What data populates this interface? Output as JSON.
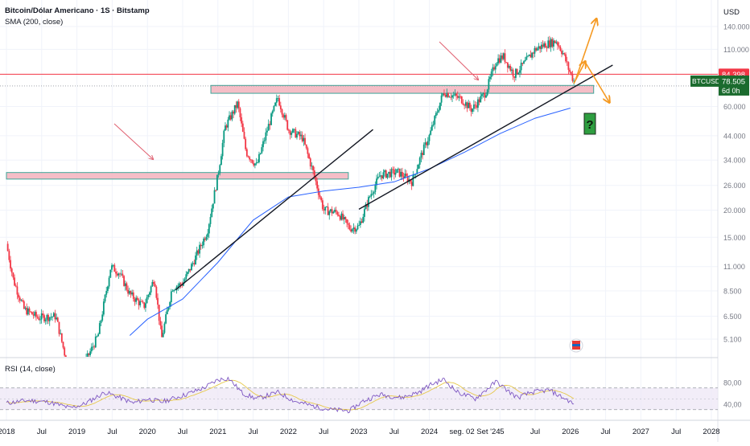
{
  "header": {
    "title": "Bitcoin/Dólar Americano · 1S · Bitstamp",
    "indicator": "SMA (200, close)"
  },
  "rsi_label": "RSI (14, close)",
  "currency_button": "USD",
  "price_tags": {
    "level_value": "84.398",
    "symbol": "BTCUSD",
    "last_value": "78.505",
    "countdown": "6d 0h"
  },
  "crosshair_date": "seg. 02 Set '24",
  "question_mark": "?",
  "colors": {
    "up": "#089981",
    "down": "#f23645",
    "sma": "#2962ff",
    "zone_fill": "#f4b8c2",
    "zone_border": "#2a9d8f",
    "rsi_line": "#7e57c2",
    "rsi_ma": "#e6c84a",
    "arrow_orange": "#f59a23",
    "arrow_red": "#e06070",
    "tag_red": "#f23645",
    "tag_green": "#1b6b2e"
  },
  "chart_data": [
    {
      "type": "candlestick",
      "title": "Bitcoin/Dólar Americano · 1S · Bitstamp",
      "scale": "log",
      "y_ticks": [
        "140.000",
        "110.000",
        "84.398",
        "60.000",
        "44.000",
        "34.000",
        "26.000",
        "20.000",
        "15.000",
        "11.000",
        "8.500",
        "6.500",
        "5.100"
      ],
      "y_tick_values": [
        140000,
        110000,
        84398,
        60000,
        44000,
        34000,
        26000,
        20000,
        15000,
        11000,
        8500,
        6500,
        5100
      ],
      "x_ticks": [
        "2018",
        "Jul",
        "2019",
        "Jul",
        "2020",
        "Jul",
        "2021",
        "Jul",
        "2022",
        "Jul",
        "2023",
        "Jul",
        "2024",
        "seg. 02 Set '24",
        "25",
        "Jul",
        "2026",
        "Jul",
        "2027",
        "Jul",
        "2028"
      ],
      "x_tick_values": [
        2018.0,
        2018.5,
        2019.0,
        2019.5,
        2020.0,
        2020.5,
        2021.0,
        2021.5,
        2022.0,
        2022.5,
        2023.0,
        2023.5,
        2024.0,
        2024.67,
        2025.0,
        2025.5,
        2026.0,
        2026.5,
        2027.0,
        2027.5,
        2028.0
      ],
      "price_path": [
        [
          2018.0,
          14000
        ],
        [
          2018.1,
          9500
        ],
        [
          2018.25,
          7000
        ],
        [
          2018.45,
          6400
        ],
        [
          2018.7,
          6500
        ],
        [
          2018.87,
          3800
        ],
        [
          2019.05,
          3600
        ],
        [
          2019.3,
          5300
        ],
        [
          2019.48,
          11000
        ],
        [
          2019.6,
          10300
        ],
        [
          2019.75,
          8200
        ],
        [
          2019.95,
          7200
        ],
        [
          2020.1,
          9800
        ],
        [
          2020.2,
          5100
        ],
        [
          2020.35,
          8800
        ],
        [
          2020.5,
          9200
        ],
        [
          2020.65,
          11500
        ],
        [
          2020.85,
          16000
        ],
        [
          2021.0,
          29000
        ],
        [
          2021.1,
          48000
        ],
        [
          2021.28,
          62000
        ],
        [
          2021.4,
          37000
        ],
        [
          2021.55,
          32000
        ],
        [
          2021.7,
          47000
        ],
        [
          2021.85,
          66000
        ],
        [
          2022.0,
          47000
        ],
        [
          2022.2,
          43000
        ],
        [
          2022.35,
          30000
        ],
        [
          2022.5,
          20000
        ],
        [
          2022.7,
          19500
        ],
        [
          2022.87,
          16500
        ],
        [
          2023.0,
          16800
        ],
        [
          2023.15,
          23000
        ],
        [
          2023.3,
          29000
        ],
        [
          2023.55,
          30000
        ],
        [
          2023.75,
          27000
        ],
        [
          2023.9,
          37000
        ],
        [
          2024.0,
          44000
        ],
        [
          2024.2,
          70000
        ],
        [
          2024.45,
          65000
        ],
        [
          2024.6,
          58000
        ],
        [
          2024.8,
          70000
        ],
        [
          2024.95,
          98000
        ],
        [
          2025.05,
          102000
        ],
        [
          2025.2,
          84000
        ],
        [
          2025.35,
          95000
        ],
        [
          2025.5,
          110000
        ],
        [
          2025.65,
          116000
        ],
        [
          2025.8,
          120000
        ],
        [
          2025.9,
          105000
        ],
        [
          2025.97,
          90000
        ],
        [
          2026.05,
          78505
        ]
      ],
      "series": [
        {
          "values": [
            [
              2019.75,
              5300
            ],
            [
              2020.0,
              6300
            ],
            [
              2020.5,
              7800
            ],
            [
              2021.0,
              11500
            ],
            [
              2021.5,
              18000
            ],
            [
              2022.0,
              23000
            ],
            [
              2022.5,
              24500
            ],
            [
              2023.0,
              25500
            ],
            [
              2023.5,
              27000
            ],
            [
              2024.0,
              31000
            ],
            [
              2024.5,
              37000
            ],
            [
              2025.0,
              45000
            ],
            [
              2025.5,
              53000
            ],
            [
              2026.0,
              59000
            ]
          ]
        }
      ],
      "last_price": 78505,
      "level_line": 84398,
      "zones": [
        [
          2018.0,
          2022.85,
          27800,
          29800
        ],
        [
          2020.9,
          2026.33,
          69000,
          75000
        ]
      ],
      "trendlines": [
        [
          2020.4,
          8600,
          2023.2,
          47000
        ],
        [
          2023.0,
          20200,
          2026.6,
          93000
        ]
      ]
    },
    {
      "type": "line",
      "title": "RSI (14, close)",
      "y_ticks": [
        "80,00",
        "40,00"
      ],
      "y_tick_values": [
        80,
        40
      ],
      "bands": [
        30,
        50,
        70
      ],
      "series": [
        {
          "values": [
            [
              2018.0,
              42
            ],
            [
              2018.3,
              47
            ],
            [
              2018.6,
              44
            ],
            [
              2018.9,
              33
            ],
            [
              2019.1,
              40
            ],
            [
              2019.4,
              62
            ],
            [
              2019.55,
              55
            ],
            [
              2019.8,
              42
            ],
            [
              2020.0,
              50
            ],
            [
              2020.2,
              44
            ],
            [
              2020.5,
              56
            ],
            [
              2020.8,
              70
            ],
            [
              2021.0,
              85
            ],
            [
              2021.15,
              88
            ],
            [
              2021.35,
              60
            ],
            [
              2021.55,
              50
            ],
            [
              2021.85,
              62
            ],
            [
              2022.1,
              45
            ],
            [
              2022.4,
              35
            ],
            [
              2022.6,
              30
            ],
            [
              2022.87,
              28
            ],
            [
              2023.05,
              45
            ],
            [
              2023.3,
              58
            ],
            [
              2023.6,
              52
            ],
            [
              2023.85,
              62
            ],
            [
              2024.0,
              75
            ],
            [
              2024.2,
              86
            ],
            [
              2024.4,
              62
            ],
            [
              2024.65,
              50
            ],
            [
              2024.95,
              82
            ],
            [
              2025.1,
              66
            ],
            [
              2025.25,
              52
            ],
            [
              2025.45,
              62
            ],
            [
              2025.7,
              66
            ],
            [
              2025.85,
              55
            ],
            [
              2026.0,
              45
            ],
            [
              2026.05,
              38
            ]
          ]
        }
      ]
    }
  ]
}
